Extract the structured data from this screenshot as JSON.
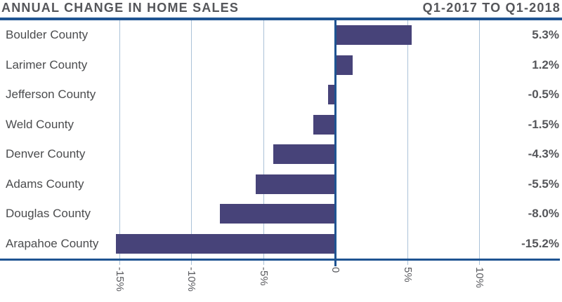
{
  "header": {
    "title": "ANNUAL CHANGE IN HOME SALES",
    "subtitle": "Q1-2017 TO Q1-2018"
  },
  "colors": {
    "bar": "#474379",
    "axis_blue": "#1f5492",
    "gridline_blue": "#abc2d8",
    "title_text": "#55565a",
    "county_text": "#4b4c4e",
    "value_text": "#55565a",
    "tick_text": "#595a5e",
    "background": "#ffffff"
  },
  "chart_data": {
    "type": "bar",
    "orientation": "horizontal",
    "title": "ANNUAL CHANGE IN HOME SALES",
    "subtitle": "Q1-2017 TO Q1-2018",
    "categories": [
      "Boulder County",
      "Larimer County",
      "Jefferson County",
      "Weld County",
      "Denver County",
      "Adams County",
      "Douglas County",
      "Arapahoe County"
    ],
    "values": [
      5.3,
      1.2,
      -0.5,
      -1.5,
      -4.3,
      -5.5,
      -8.0,
      -15.2
    ],
    "value_labels": [
      "5.3%",
      "1.2%",
      "-0.5%",
      "-1.5%",
      "-4.3%",
      "-5.5%",
      "-8.0%",
      "-15.2%"
    ],
    "unit": "%",
    "axis_ticks": [
      {
        "value": -15,
        "label": "-15%"
      },
      {
        "value": -10,
        "label": "-10%"
      },
      {
        "value": -5,
        "label": "-5%"
      },
      {
        "value": 0,
        "label": "0"
      },
      {
        "value": 5,
        "label": "5%"
      },
      {
        "value": 10,
        "label": "10%"
      }
    ],
    "xlim": [
      -23.3,
      15.8
    ],
    "grid": true,
    "legend": false,
    "xlabel": "",
    "ylabel": ""
  }
}
